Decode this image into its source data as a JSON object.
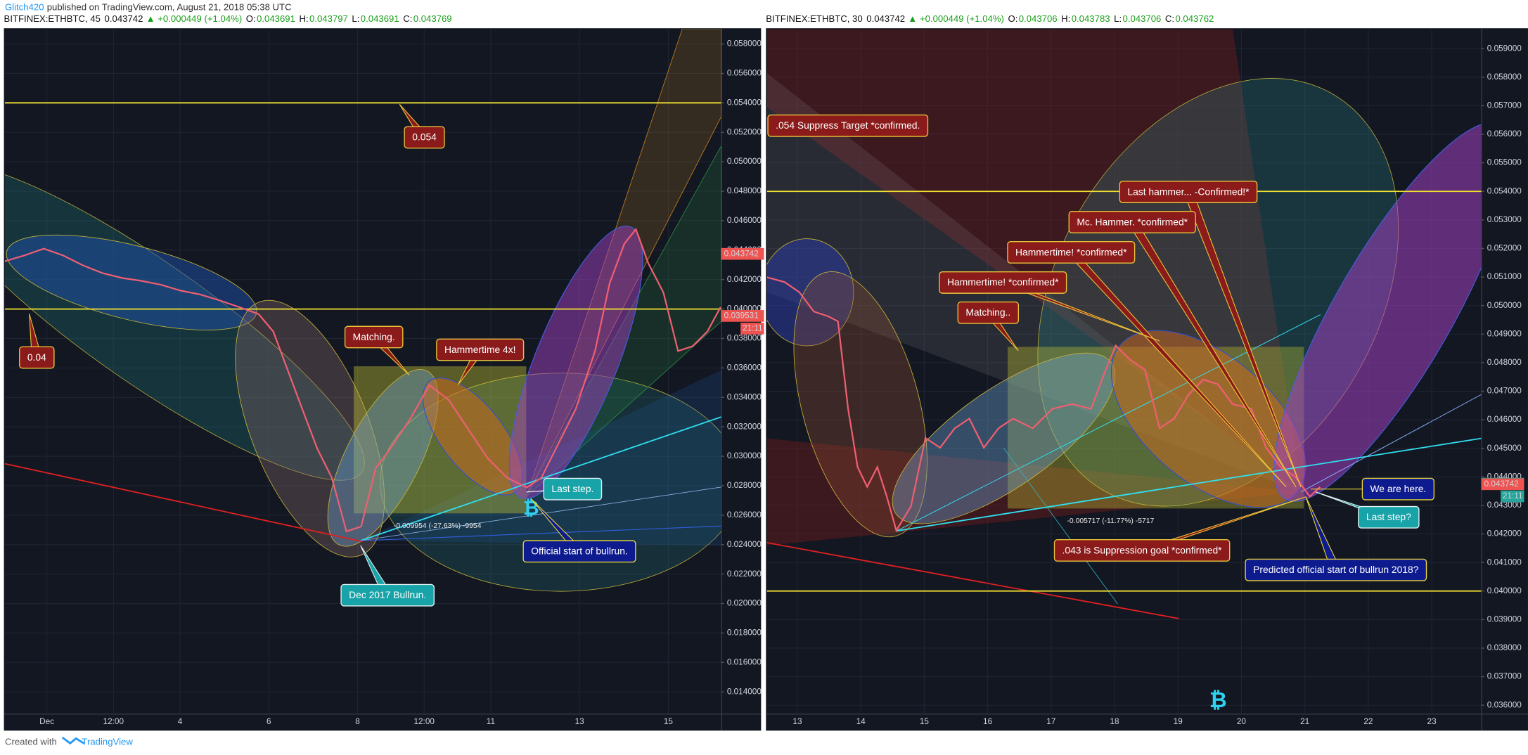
{
  "header": {
    "author": "Glitch420",
    "published": "published on TradingView.com, August 21, 2018 05:38 UTC"
  },
  "footer": {
    "created": "Created with",
    "brand": "TradingView"
  },
  "chart_data": [
    {
      "type": "line",
      "symbol": "BITFINEX:ETHBTC, 45",
      "last": "0.043742",
      "change": "▲ +0.000449 (+1.04%)",
      "ohlc": [
        [
          "O:",
          "0.043691"
        ],
        [
          "H:",
          "0.043797"
        ],
        [
          "L:",
          "0.043691"
        ],
        [
          "C:",
          "0.043769"
        ]
      ],
      "xlim": [
        0.055,
        16.19
      ],
      "xticks": [
        {
          "value": 1,
          "label": "Dec"
        },
        {
          "value": 2.5,
          "label": "12:00"
        },
        4,
        6,
        8,
        {
          "value": 9.5,
          "label": "12:00"
        },
        11,
        13,
        15
      ],
      "ylim": [
        0.0117,
        0.059
      ],
      "yticks": [
        {
          "value": 0.014,
          "label": "0.014000"
        },
        {
          "value": 0.016,
          "label": "0.016000"
        },
        {
          "value": 0.018,
          "label": "0.018000"
        },
        {
          "value": 0.02,
          "label": "0.020000"
        },
        {
          "value": 0.022,
          "label": "0.022000"
        },
        {
          "value": 0.024,
          "label": "0.024000"
        },
        {
          "value": 0.026,
          "label": "0.026000"
        },
        {
          "value": 0.028,
          "label": "0.028000"
        },
        {
          "value": 0.03,
          "label": "0.030000"
        },
        {
          "value": 0.032,
          "label": "0.032000"
        },
        {
          "value": 0.034,
          "label": "0.034000"
        },
        {
          "value": 0.036,
          "label": "0.036000"
        },
        {
          "value": 0.038,
          "label": "0.038000"
        },
        {
          "value": 0.04,
          "label": "0.040000"
        },
        {
          "value": 0.042,
          "label": "0.042000"
        },
        {
          "value": 0.044,
          "label": "0.044000"
        },
        {
          "value": 0.046,
          "label": "0.046000"
        },
        {
          "value": 0.048,
          "label": "0.048000"
        },
        {
          "value": 0.05,
          "label": "0.050000"
        },
        {
          "value": 0.052,
          "label": "0.052000"
        },
        {
          "value": 0.054,
          "label": "0.054000"
        },
        {
          "value": 0.056,
          "label": "0.056000"
        },
        {
          "value": 0.058,
          "label": "0.058000"
        }
      ],
      "grid": true,
      "color": "#ef5f72",
      "levels": [
        0.054,
        0.04
      ],
      "level_color": "#f2e230",
      "x": [
        0.05,
        0.49,
        0.93,
        1.37,
        1.81,
        2.25,
        2.69,
        3.13,
        3.57,
        4.01,
        4.45,
        4.89,
        5.33,
        5.77,
        6.1,
        6.43,
        6.76,
        7.09,
        7.42,
        7.75,
        8.08,
        8.41,
        8.74,
        9.18,
        9.62,
        10.05,
        10.49,
        10.93,
        11.37,
        11.81,
        12.14,
        12.47,
        12.91,
        13.35,
        13.68,
        14.01,
        14.27,
        14.55,
        14.89,
        15.22,
        15.55,
        15.88,
        16.18
      ],
      "values": [
        0.04324,
        0.04363,
        0.0441,
        0.04363,
        0.04297,
        0.04244,
        0.04211,
        0.04191,
        0.04165,
        0.04125,
        0.04099,
        0.04059,
        0.04013,
        0.03966,
        0.03847,
        0.03582,
        0.03317,
        0.03053,
        0.02854,
        0.0249,
        0.02523,
        0.0292,
        0.03053,
        0.03251,
        0.03483,
        0.03384,
        0.03185,
        0.02987,
        0.02854,
        0.02788,
        0.02854,
        0.03053,
        0.03317,
        0.03715,
        0.04178,
        0.04443,
        0.04542,
        0.0431,
        0.04112,
        0.03715,
        0.03748,
        0.03847,
        0.04013
      ],
      "price_tags": [
        {
          "value": 0.043742,
          "label": "0.043742",
          "color": "#ef5350"
        },
        {
          "value": 0.039531,
          "label": "0.039531",
          "color": "#ef5350",
          "countdown": "21:11"
        }
      ],
      "measure": "-0.009954 (-27.63%) -9954",
      "annotations": [
        {
          "text": "0.054",
          "style": "red"
        },
        {
          "text": "0.04",
          "style": "red"
        },
        {
          "text": "Matching.",
          "style": "red"
        },
        {
          "text": "Hammertime 4x!",
          "style": "red"
        },
        {
          "text": "Last step.",
          "style": "teal"
        },
        {
          "text": "Official start of bullrun.",
          "style": "blue"
        },
        {
          "text": "Dec 2017 Bullrun.",
          "style": "teal"
        }
      ]
    },
    {
      "type": "line",
      "symbol": "BITFINEX:ETHBTC, 30",
      "last": "0.043742",
      "change": "▲ +0.000449 (+1.04%)",
      "ohlc": [
        [
          "O:",
          "0.043706"
        ],
        [
          "H:",
          "0.043783"
        ],
        [
          "L:",
          "0.043706"
        ],
        [
          "C:",
          "0.043762"
        ]
      ],
      "xlim": [
        12.52,
        23.78
      ],
      "xticks": [
        13,
        14,
        15,
        16,
        17,
        18,
        19,
        20,
        21,
        22,
        23
      ],
      "ylim": [
        0.03528,
        0.05968
      ],
      "yticks": [
        {
          "value": 0.036,
          "label": "0.036000"
        },
        {
          "value": 0.037,
          "label": "0.037000"
        },
        {
          "value": 0.038,
          "label": "0.038000"
        },
        {
          "value": 0.039,
          "label": "0.039000"
        },
        {
          "value": 0.04,
          "label": "0.040000"
        },
        {
          "value": 0.041,
          "label": "0.041000"
        },
        {
          "value": 0.042,
          "label": "0.042000"
        },
        {
          "value": 0.043,
          "label": "0.043000"
        },
        {
          "value": 0.044,
          "label": "0.044000"
        },
        {
          "value": 0.045,
          "label": "0.045000"
        },
        {
          "value": 0.046,
          "label": "0.046000"
        },
        {
          "value": 0.047,
          "label": "0.047000"
        },
        {
          "value": 0.048,
          "label": "0.048000"
        },
        {
          "value": 0.049,
          "label": "0.049000"
        },
        {
          "value": 0.05,
          "label": "0.050000"
        },
        {
          "value": 0.051,
          "label": "0.051000"
        },
        {
          "value": 0.052,
          "label": "0.052000"
        },
        {
          "value": 0.053,
          "label": "0.053000"
        },
        {
          "value": 0.054,
          "label": "0.054000"
        },
        {
          "value": 0.055,
          "label": "0.055000"
        },
        {
          "value": 0.056,
          "label": "0.056000"
        },
        {
          "value": 0.057,
          "label": "0.057000"
        },
        {
          "value": 0.058,
          "label": "0.058000"
        },
        {
          "value": 0.059,
          "label": "0.059000"
        }
      ],
      "grid": true,
      "color": "#ef5f72",
      "levels": [
        0.054,
        0.04
      ],
      "level_color": "#f2e230",
      "x": [
        12.52,
        12.8,
        13.03,
        13.26,
        13.49,
        13.64,
        13.8,
        13.95,
        14.1,
        14.26,
        14.41,
        14.56,
        14.79,
        15.02,
        15.25,
        15.48,
        15.71,
        15.94,
        16.17,
        16.4,
        16.71,
        17.02,
        17.33,
        17.63,
        17.86,
        18.02,
        18.25,
        18.48,
        18.71,
        18.94,
        19.17,
        19.4,
        19.63,
        19.86,
        20.16,
        20.39,
        20.62,
        20.85,
        21.08,
        21.24
      ],
      "values": [
        0.05099,
        0.05082,
        0.05047,
        0.04979,
        0.04962,
        0.04945,
        0.04638,
        0.04434,
        0.04365,
        0.04434,
        0.04331,
        0.04212,
        0.04297,
        0.04536,
        0.04502,
        0.0457,
        0.04604,
        0.04502,
        0.0457,
        0.04604,
        0.0457,
        0.04638,
        0.04655,
        0.04638,
        0.04775,
        0.0486,
        0.04809,
        0.04775,
        0.0457,
        0.04604,
        0.04689,
        0.04741,
        0.04724,
        0.04655,
        0.04638,
        0.04502,
        0.04434,
        0.044,
        0.04331,
        0.04365
      ],
      "price_tags": [
        {
          "value": 0.043762,
          "label": "0.043762",
          "color": "#26a69a",
          "countdown": "21:11"
        },
        {
          "value": 0.043742,
          "label": "0.043742",
          "color": "#ef5350"
        }
      ],
      "measure": "-0.005717 (-11.77%) -5717",
      "annotations": [
        {
          "text": ".054 Suppress Target *confirmed.",
          "style": "red"
        },
        {
          "text": "Last hammer... -Confirmed!*",
          "style": "red"
        },
        {
          "text": "Mc. Hammer. *confirmed*",
          "style": "red"
        },
        {
          "text": "Hammertime! *confirmed*",
          "style": "red"
        },
        {
          "text": "Hammertime! *confirmed*",
          "style": "red"
        },
        {
          "text": "Matching..",
          "style": "red"
        },
        {
          "text": "We are here.",
          "style": "blue"
        },
        {
          "text": "Last step?",
          "style": "teal"
        },
        {
          "text": ".043 is Suppression goal *confirmed*",
          "style": "red"
        },
        {
          "text": "Predicted official start of bullrun 2018?",
          "style": "blue"
        }
      ]
    }
  ]
}
